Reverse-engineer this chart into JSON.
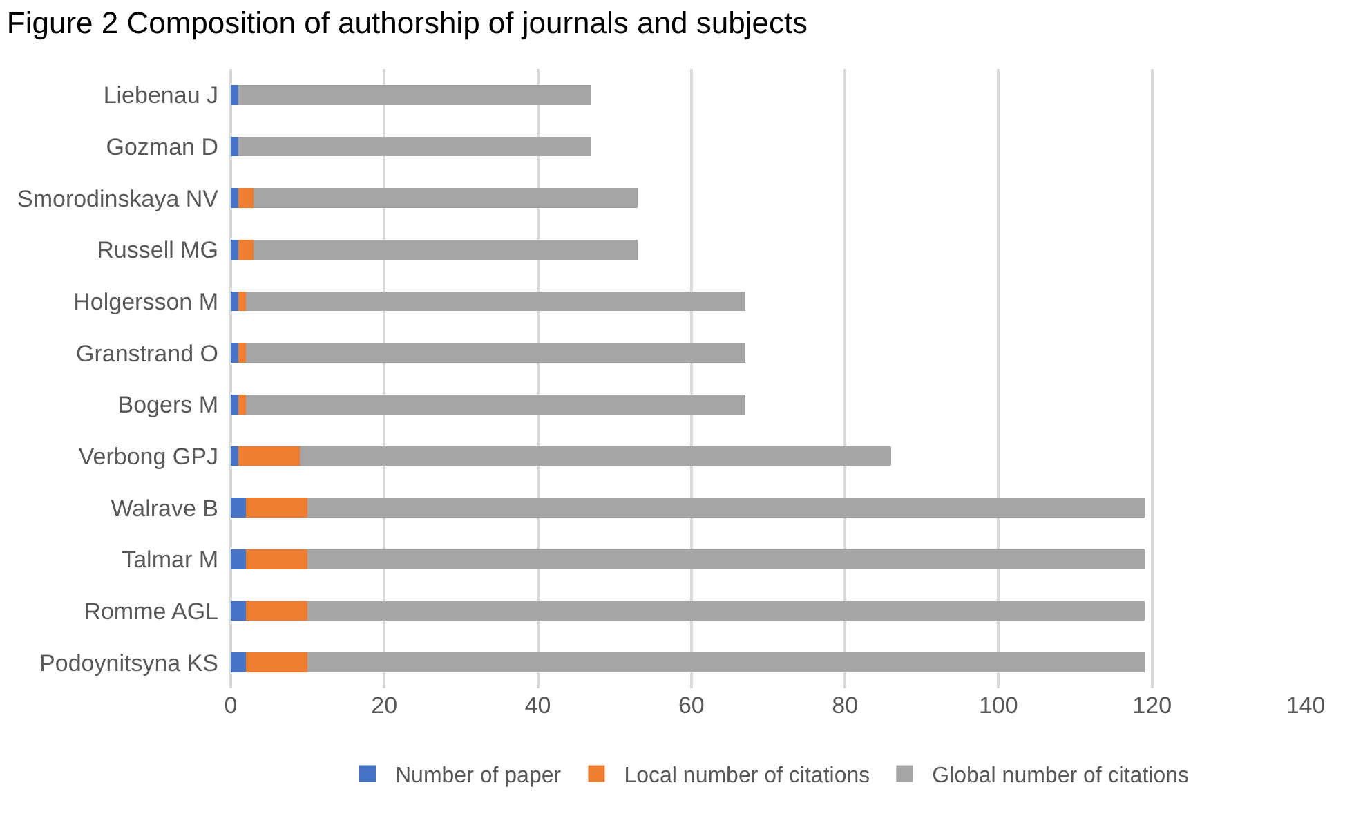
{
  "chart_data": {
    "type": "bar",
    "orientation": "horizontal",
    "stacked": true,
    "title": "Figure 2 Composition of authorship of journals and subjects",
    "categories": [
      "Liebenau J",
      "Gozman D",
      "Smorodinskaya NV",
      "Russell MG",
      "Holgersson M",
      "Granstrand O",
      "Bogers M",
      "Verbong GPJ",
      "Walrave B",
      "Talmar M",
      "Romme AGL",
      "Podoynitsyna KS"
    ],
    "series": [
      {
        "name": "Number of paper",
        "color": "#4472c4",
        "values": [
          1,
          1,
          1,
          1,
          1,
          1,
          1,
          1,
          2,
          2,
          2,
          2
        ]
      },
      {
        "name": "Local number of citations",
        "color": "#ed7d31",
        "values": [
          0,
          0,
          2,
          2,
          1,
          1,
          1,
          8,
          8,
          8,
          8,
          8
        ]
      },
      {
        "name": "Global number of citations",
        "color": "#a5a5a5",
        "values": [
          46,
          46,
          50,
          50,
          65,
          65,
          65,
          77,
          109,
          109,
          109,
          109
        ]
      }
    ],
    "xlim": [
      0,
      140
    ],
    "xticks": [
      0,
      20,
      40,
      60,
      80,
      100,
      120,
      140
    ],
    "grid": "x",
    "legend": "bottom"
  }
}
